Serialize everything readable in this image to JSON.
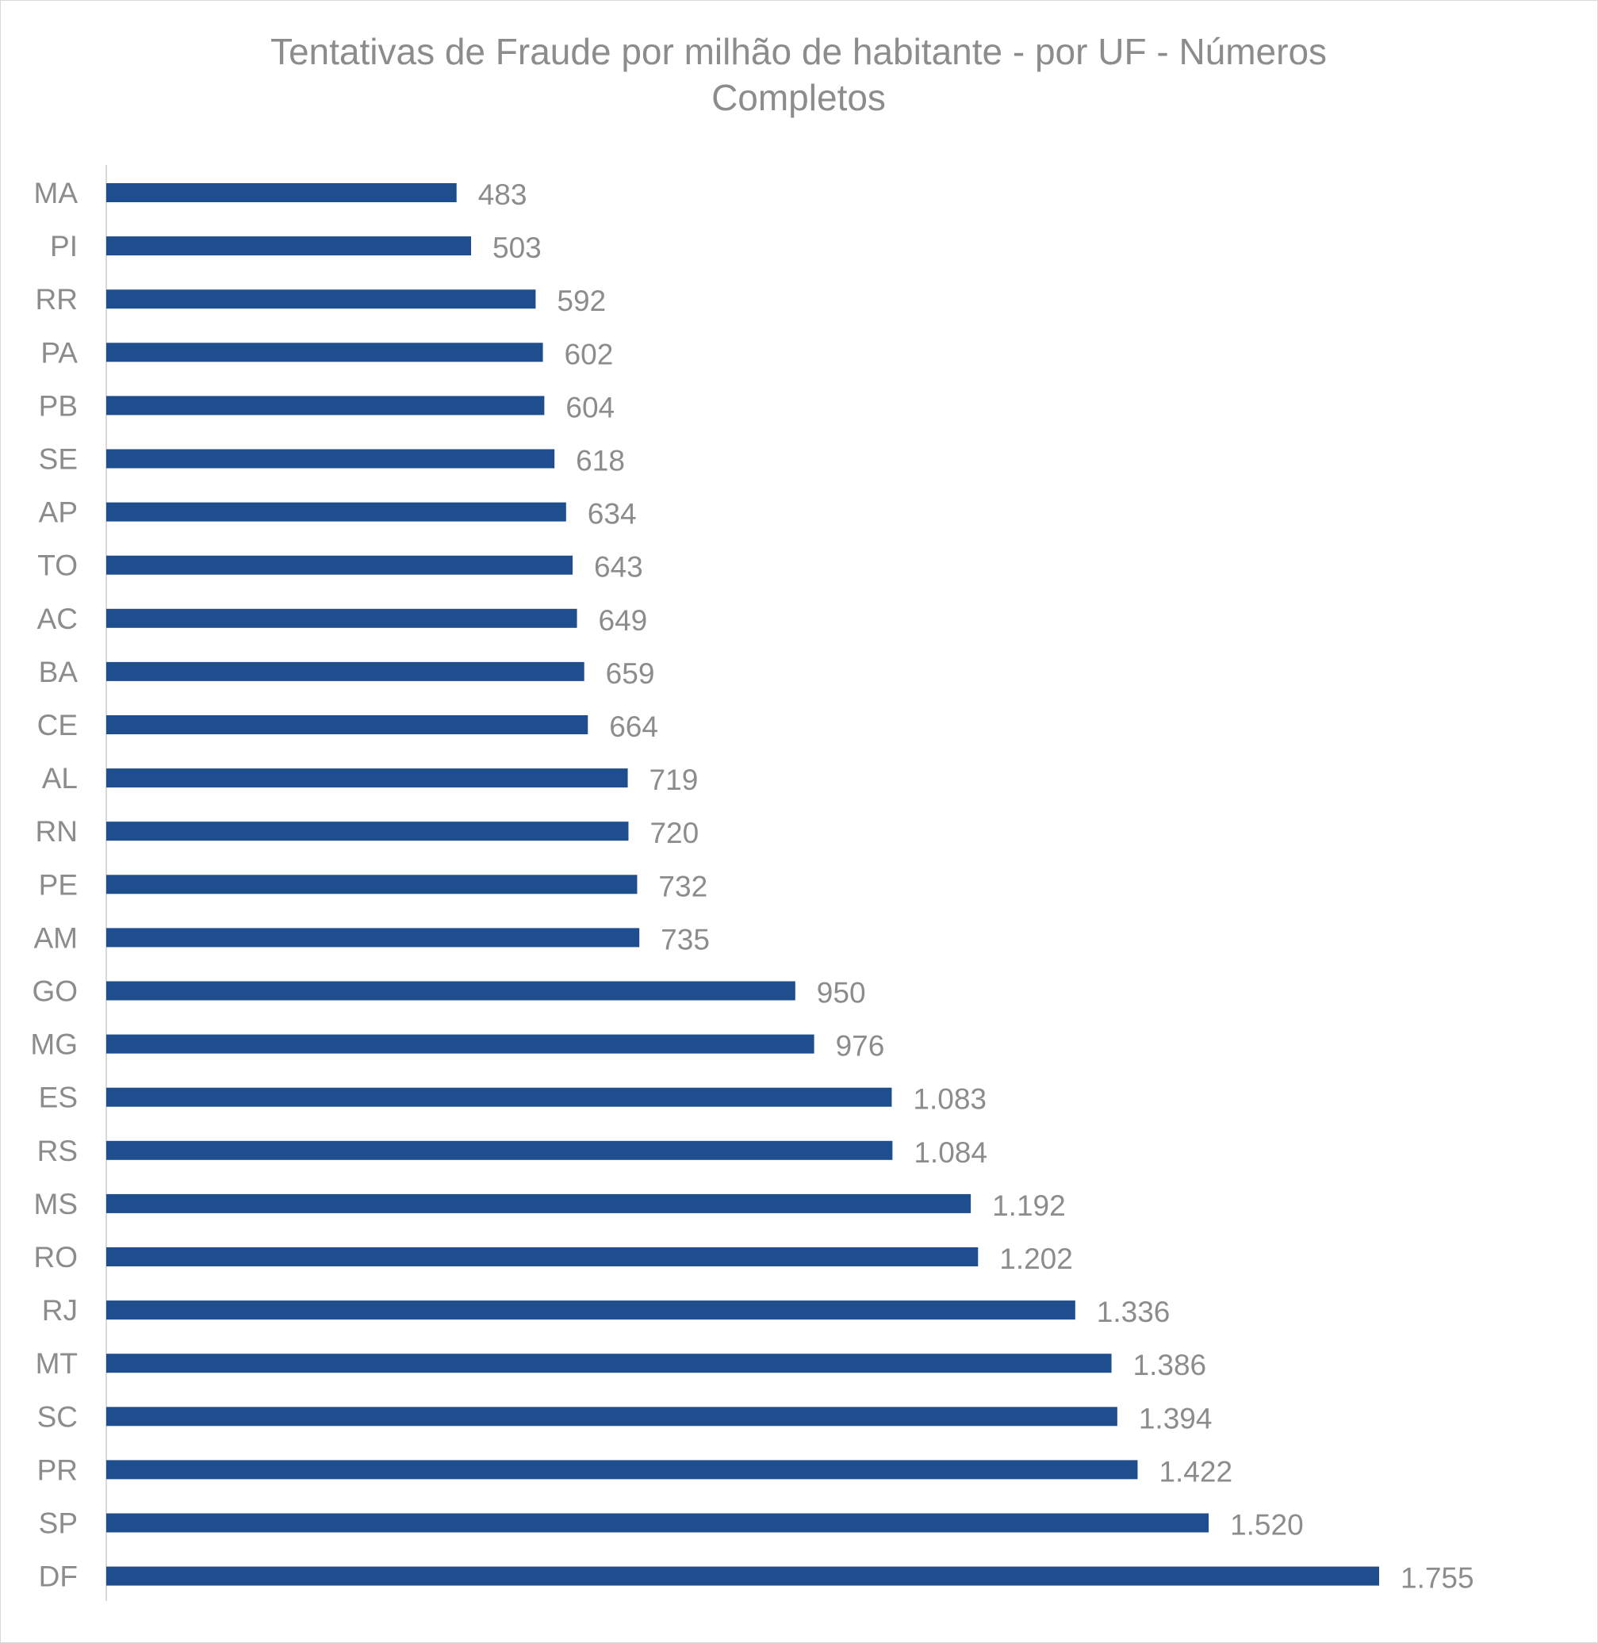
{
  "chart_data": {
    "type": "bar",
    "orientation": "horizontal",
    "title": "Tentativas de Fraude por milhão de habitante - por UF - Números Completos",
    "title_lines": [
      "Tentativas de Fraude por milhão de habitante - por UF - Números",
      "Completos"
    ],
    "categories": [
      "MA",
      "PI",
      "RR",
      "PA",
      "PB",
      "SE",
      "AP",
      "TO",
      "AC",
      "BA",
      "CE",
      "AL",
      "RN",
      "PE",
      "AM",
      "GO",
      "MG",
      "ES",
      "RS",
      "MS",
      "RO",
      "RJ",
      "MT",
      "SC",
      "PR",
      "SP",
      "DF"
    ],
    "values": [
      483,
      503,
      592,
      602,
      604,
      618,
      634,
      643,
      649,
      659,
      664,
      719,
      720,
      732,
      735,
      950,
      976,
      1083,
      1084,
      1192,
      1202,
      1336,
      1386,
      1394,
      1422,
      1520,
      1755
    ],
    "value_labels": [
      "483",
      "503",
      "592",
      "602",
      "604",
      "618",
      "634",
      "643",
      "649",
      "659",
      "664",
      "719",
      "720",
      "732",
      "735",
      "950",
      "976",
      "1.083",
      "1.084",
      "1.192",
      "1.202",
      "1.336",
      "1.386",
      "1.394",
      "1.422",
      "1.520",
      "1.755"
    ],
    "xlim": [
      0,
      1755
    ],
    "grid": false,
    "legend": "none",
    "bar_color": "#1f4e8f",
    "text_color": "#8c8c8c"
  }
}
